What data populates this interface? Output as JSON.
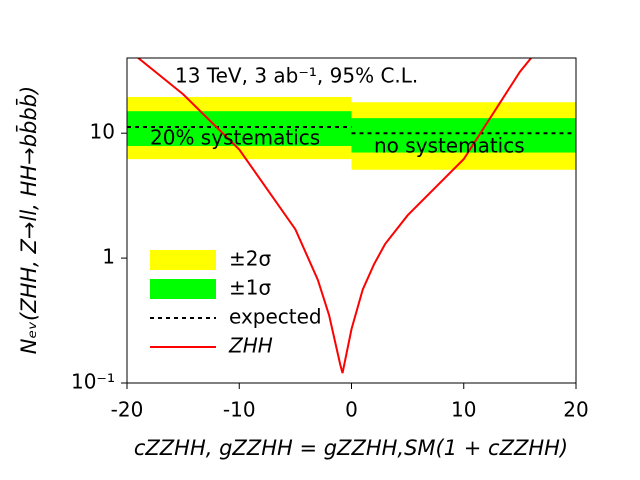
{
  "chart_data": {
    "type": "band",
    "annotation": "13 TeV, 3 ab⁻¹, 95% C.L.",
    "x_label": "cZZHH, gZZHH = gZZHH,SM(1 + cZZHH)",
    "y_label": "Nₑᵥ(ZHH, Z→ll, HH→bb̄bb̄)",
    "regions": {
      "edges": [
        -20,
        0,
        20
      ],
      "labels": [
        "20% systematics",
        "no systematics"
      ]
    },
    "series": [
      {
        "name": "±2σ",
        "color": "#ffff00",
        "low": [
          6.2,
          5.1
        ],
        "high": [
          19.5,
          17.7
        ]
      },
      {
        "name": "±1σ",
        "color": "#00ff00",
        "low": [
          7.9,
          7.0
        ],
        "high": [
          15.0,
          13.2
        ]
      },
      {
        "name": "expected",
        "color": "#000000",
        "values": [
          11.2,
          10.0
        ]
      },
      {
        "name": "ZHH",
        "color": "#ff0000",
        "x": [
          -19,
          -15,
          -10,
          -5,
          -3,
          -2,
          -1,
          -0.8,
          0,
          1,
          2,
          3,
          5,
          10,
          15,
          16
        ],
        "values": [
          40,
          20.5,
          7.4,
          1.7,
          0.67,
          0.35,
          0.14,
          0.12,
          0.27,
          0.56,
          0.89,
          1.3,
          2.2,
          6.2,
          31,
          40
        ]
      }
    ],
    "xlim": [
      -20,
      20
    ],
    "xticks": [
      -20,
      -10,
      0,
      10,
      20
    ],
    "ylim": [
      0.1,
      40
    ],
    "log_y": true,
    "yticks": [
      {
        "value": 0.1,
        "label": "10⁻¹"
      },
      1,
      10
    ],
    "legend": "lower left"
  }
}
